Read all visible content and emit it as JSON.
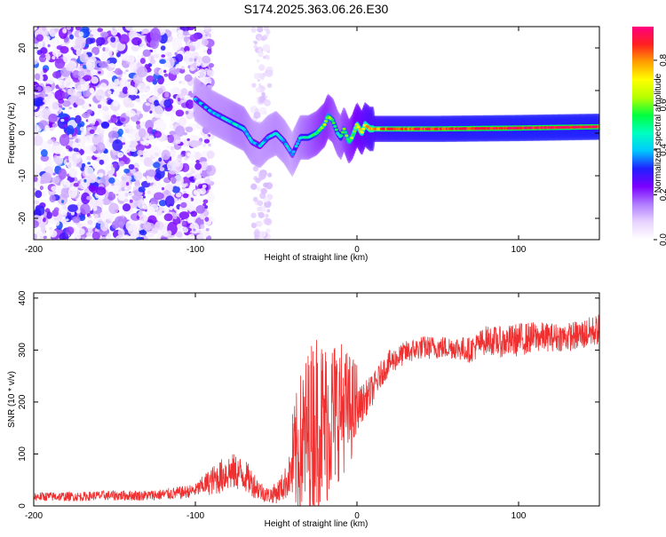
{
  "title": "S174.2025.363.06.26.E30",
  "chart_data": [
    {
      "type": "heatmap",
      "title": "S174.2025.363.06.26.E30",
      "xlabel": "Height of straight line (km)",
      "ylabel": "Frequency (Hz)",
      "xlim": [
        -200,
        150
      ],
      "ylim": [
        -25,
        25
      ],
      "x_ticks": [
        -200,
        -100,
        0,
        100
      ],
      "x_tick_labels": [
        "-200",
        "-100",
        "0",
        "100"
      ],
      "y_ticks": [
        -20,
        -10,
        0,
        10,
        20
      ],
      "y_tick_labels": [
        "-20",
        "-10",
        "0",
        "10",
        "20"
      ],
      "colorbar": {
        "label": "Normalized spectral amplitude",
        "range": [
          0,
          0.95
        ],
        "ticks": [
          0.0,
          0.2,
          0.4,
          0.6,
          0.8
        ],
        "tick_labels": [
          "0.0",
          "0.2",
          "0.4",
          "0.6",
          "0.8"
        ],
        "colormap": [
          "#ffffff",
          "#e8d4ff",
          "#b07cff",
          "#7a00ff",
          "#2020ff",
          "#00c8ff",
          "#00ffc0",
          "#00ff40",
          "#b4ff00",
          "#ffff00",
          "#ffa000",
          "#ff2020",
          "#ff0080"
        ]
      },
      "ridge": {
        "x": [
          -100,
          -90,
          -80,
          -75,
          -70,
          -65,
          -60,
          -55,
          -50,
          -45,
          -40,
          -35,
          -30,
          -25,
          -20,
          -18,
          -15,
          -12,
          -10,
          -8,
          -5,
          -3,
          0,
          3,
          5,
          8,
          10,
          20,
          50,
          100,
          150
        ],
        "y": [
          8,
          5,
          3,
          2,
          1,
          -2,
          -3,
          -1,
          0,
          -2,
          -5,
          -1,
          -1,
          0,
          2,
          4,
          3,
          0,
          -1,
          1,
          -2,
          -1,
          2,
          0,
          2,
          1,
          1,
          1,
          1,
          1.2,
          1.5
        ],
        "amplitude": [
          0.35,
          0.4,
          0.42,
          0.45,
          0.45,
          0.4,
          0.38,
          0.4,
          0.42,
          0.4,
          0.35,
          0.45,
          0.5,
          0.55,
          0.6,
          0.6,
          0.55,
          0.5,
          0.5,
          0.55,
          0.6,
          0.62,
          0.7,
          0.72,
          0.75,
          0.78,
          0.8,
          0.85,
          0.88,
          0.9,
          0.9
        ]
      }
    },
    {
      "type": "line",
      "xlabel": "Height of straight line (km)",
      "ylabel": "SNR (10 * v/v)",
      "xlim": [
        -200,
        150
      ],
      "ylim": [
        0,
        410
      ],
      "x_ticks": [
        -200,
        -100,
        0,
        100
      ],
      "x_tick_labels": [
        "-200",
        "-100",
        "0",
        "100"
      ],
      "y_ticks": [
        0,
        100,
        200,
        300,
        400
      ],
      "y_tick_labels": [
        "0",
        "100",
        "200",
        "300",
        "400"
      ],
      "series": [
        {
          "name": "SNR",
          "color": "#f03030",
          "x": [
            -200,
            -190,
            -180,
            -170,
            -160,
            -150,
            -140,
            -130,
            -120,
            -110,
            -100,
            -95,
            -90,
            -85,
            -80,
            -75,
            -70,
            -65,
            -60,
            -55,
            -50,
            -45,
            -40,
            -35,
            -30,
            -25,
            -20,
            -15,
            -10,
            -5,
            0,
            5,
            10,
            15,
            20,
            25,
            30,
            40,
            50,
            60,
            70,
            80,
            90,
            100,
            110,
            120,
            130,
            140,
            150
          ],
          "values": [
            18,
            18,
            18,
            18,
            20,
            20,
            20,
            20,
            22,
            25,
            30,
            40,
            48,
            55,
            65,
            65,
            60,
            45,
            30,
            20,
            25,
            40,
            70,
            100,
            125,
            150,
            140,
            160,
            175,
            175,
            185,
            205,
            225,
            255,
            275,
            285,
            295,
            305,
            305,
            305,
            300,
            320,
            315,
            320,
            325,
            325,
            325,
            330,
            340
          ],
          "noise": [
            18,
            18,
            18,
            18,
            18,
            20,
            20,
            20,
            22,
            25,
            25,
            40,
            55,
            65,
            75,
            70,
            65,
            55,
            40,
            30,
            40,
            60,
            90,
            130,
            150,
            160,
            150,
            140,
            120,
            100,
            80,
            70,
            60,
            50,
            50,
            45,
            45,
            45,
            45,
            45,
            50,
            55,
            60,
            65,
            60,
            55,
            55,
            60,
            60
          ]
        }
      ]
    }
  ]
}
